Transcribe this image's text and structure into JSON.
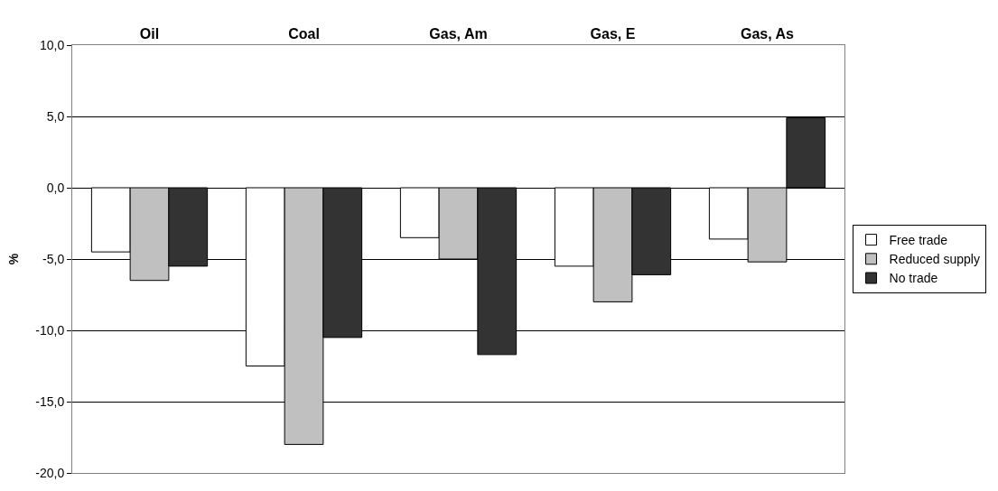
{
  "chart_data": {
    "type": "bar",
    "ylabel": "%",
    "categories": [
      "Oil",
      "Coal",
      "Gas, Am",
      "Gas, E",
      "Gas, As"
    ],
    "series": [
      {
        "name": "Free trade",
        "color": "#ffffff",
        "values": [
          -4.5,
          -12.5,
          -3.5,
          -5.5,
          -3.6
        ]
      },
      {
        "name": "Reduced supply",
        "color": "#c0c0c0",
        "values": [
          -6.5,
          -18.0,
          -5.0,
          -8.0,
          -5.2
        ]
      },
      {
        "name": "No trade",
        "color": "#333333",
        "values": [
          -5.5,
          -10.5,
          -11.7,
          -6.1,
          4.9
        ]
      }
    ],
    "ylim": [
      -20,
      10
    ],
    "yticks": [
      {
        "value": -20,
        "label": "-20,0"
      },
      {
        "value": -15,
        "label": "-15,0"
      },
      {
        "value": -10,
        "label": "-10,0"
      },
      {
        "value": -5,
        "label": "-5,0"
      },
      {
        "value": 0,
        "label": "0,0"
      },
      {
        "value": 5,
        "label": "5,0"
      },
      {
        "value": 10,
        "label": "10,0"
      }
    ],
    "grid": "y",
    "legend": "right"
  }
}
